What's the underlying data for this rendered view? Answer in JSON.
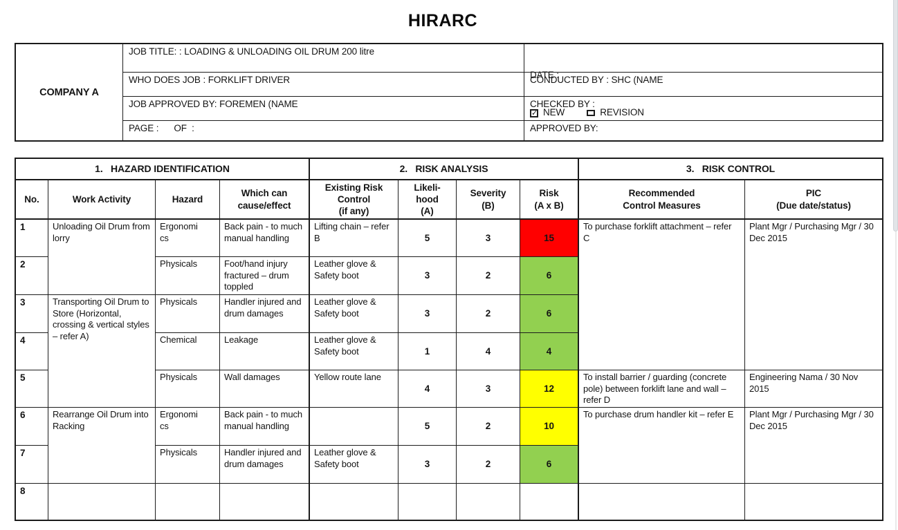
{
  "title": "HIRARC",
  "info_table": {
    "company": "COMPANY A",
    "job_title": "JOB TITLE: : LOADING & UNLOADING OIL DRUM 200 litre",
    "who_does_job": "WHO DOES JOB : FORKLIFT DRIVER",
    "job_approved_by": "JOB APPROVED BY: FOREMEN (NAME",
    "page": "PAGE :      OF  :",
    "date_label": "DATE :",
    "new_label": "NEW",
    "new_check": "✓",
    "revision_label": "REVISION",
    "conducted_by": "CONDUCTED BY : SHC (NAME",
    "checked_by": "CHECKED BY :",
    "approved_by": "APPROVED BY:"
  },
  "main_table": {
    "section_headers": [
      "1.   HAZARD IDENTIFICATION",
      "2.   RISK ANALYSIS",
      "3.   RISK CONTROL"
    ],
    "column_headers": [
      "No.",
      "Work Activity",
      "Hazard",
      "Which can\ncause/effect",
      "Existing Risk\nControl\n(if any)",
      "Likeli-\nhood\n(A)",
      "Severity\n(B)",
      "Risk\n(A x B)",
      "Recommended\nControl Measures",
      "PIC\n(Due date/status)"
    ],
    "work_activities": [
      {
        "text": "Unloading Oil Drum from lorry"
      },
      {
        "text": "Transporting Oil Drum to Store (Horizontal, crossing & vertical styles – refer A)"
      },
      {
        "text": "Rearrange Oil Drum into Racking"
      },
      {
        "text": ""
      }
    ],
    "rows": [
      {
        "no": "1",
        "hazard": "Ergonomi\ncs",
        "effect": "Back pain - to much manual handling",
        "control": "Lifting chain – refer B",
        "likelihood": "5",
        "severity": "3",
        "risk": "15",
        "risk_color": "#FF0000"
      },
      {
        "no": "2",
        "hazard": "Physicals",
        "effect": "Foot/hand injury fractured – drum toppled",
        "control": "Leather glove & Safety boot",
        "likelihood": "3",
        "severity": "2",
        "risk": "6",
        "risk_color": "#92D050"
      },
      {
        "no": "3",
        "hazard": "Physicals",
        "effect": "Handler injured and drum damages",
        "control": "Leather glove & Safety boot",
        "likelihood": "3",
        "severity": "2",
        "risk": "6",
        "risk_color": "#92D050"
      },
      {
        "no": "4",
        "hazard": "Chemical",
        "effect": "Leakage",
        "control": "Leather glove & Safety boot",
        "likelihood": "1",
        "severity": "4",
        "risk": "4",
        "risk_color": "#92D050"
      },
      {
        "no": "5",
        "hazard": "Physicals",
        "effect": "Wall damages",
        "control": "Yellow route lane",
        "likelihood": "4",
        "severity": "3",
        "risk": "12",
        "risk_color": "#FFFF00"
      },
      {
        "no": "6",
        "hazard": "Ergonomi\ncs",
        "effect": "Back pain - to much manual handling",
        "control": "",
        "likelihood": "5",
        "severity": "2",
        "risk": "10",
        "risk_color": "#FFFF00"
      },
      {
        "no": "7",
        "hazard": "Physicals",
        "effect": "Handler injured and drum damages",
        "control": "Leather glove & Safety boot",
        "likelihood": "3",
        "severity": "2",
        "risk": "6",
        "risk_color": "#92D050"
      },
      {
        "no": "8",
        "hazard": "",
        "effect": "",
        "control": "",
        "likelihood": "",
        "severity": "",
        "risk": "",
        "risk_color": ""
      }
    ],
    "controls": [
      {
        "measure": "To purchase forklift attachment – refer C",
        "pic": "Plant Mgr / Purchasing Mgr / 30 Dec 2015"
      },
      {
        "measure": "To install barrier / guarding (concrete pole) between forklift lane and wall – refer D",
        "pic": "Engineering Nama / 30 Nov 2015"
      },
      {
        "measure": "To purchase drum handler kit – refer E",
        "pic": "Plant Mgr / Purchasing Mgr / 30 Dec 2015"
      },
      {
        "measure": "",
        "pic": ""
      }
    ]
  }
}
